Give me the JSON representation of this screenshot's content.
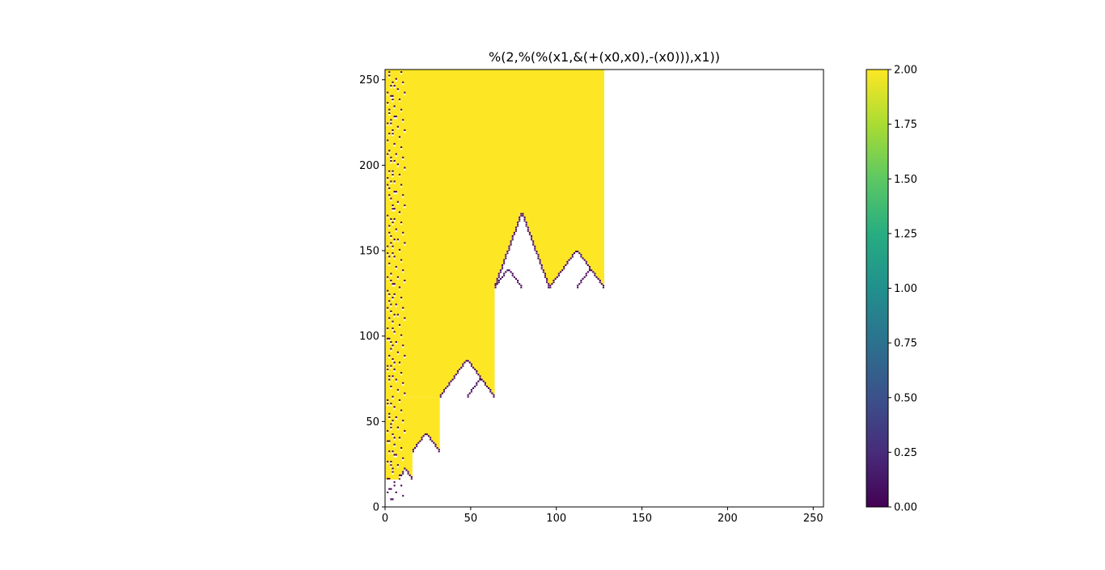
{
  "chart_data": {
    "type": "heatmap",
    "title": "%(2,%(%(x1,&(+(x0,x0),-(x0))),x1))",
    "xlabel": "",
    "ylabel": "",
    "xlim": [
      0,
      256
    ],
    "ylim": [
      0,
      256
    ],
    "x_ticks": [
      "0",
      "50",
      "100",
      "150",
      "200",
      "250"
    ],
    "y_ticks": [
      "0",
      "50",
      "100",
      "150",
      "200",
      "250"
    ],
    "grid": false,
    "colormap": "viridis",
    "colorbar": {
      "min": 0.0,
      "max": 2.0,
      "tick_labels": [
        "0.00",
        "0.25",
        "0.50",
        "0.75",
        "1.00",
        "1.25",
        "1.50",
        "1.75",
        "2.00"
      ]
    },
    "undefined_color": "#ffffff",
    "colors": {
      "low": "#440154",
      "high": "#fde725"
    },
    "value_classes": [
      0,
      2
    ],
    "filled_region_description": "cells with value 2 (yellow) fill a staircase region: x < 16 for y 16-31, x < 32 for y 32-63, x < 64 for y 64-127, x < 128 for y 128-255; value 0 (dark) cells appear scattered near the left edge and along the lower boundaries; remaining cells are undefined (white)"
  }
}
